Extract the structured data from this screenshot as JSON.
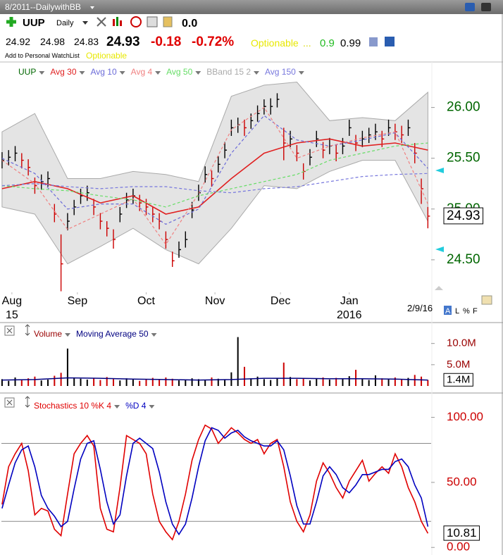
{
  "header": {
    "window_title": "8/2011--DailywithBB",
    "symbol": "UUP",
    "period": "Daily",
    "change_top": "0.0",
    "open": "24.92",
    "high": "24.98",
    "low": "24.83",
    "last": "24.93",
    "change": "-0.18",
    "change_pct": "-0.72%",
    "optionable": "Optionable",
    "dots": "...",
    "value1": "0.9",
    "value2": "0.99",
    "watchlist": "Add to Personal WatchList",
    "optionable2": "Optionable",
    "view_options": [
      "A",
      "L",
      "%",
      "F"
    ]
  },
  "chart_data": [
    {
      "type": "ohlc",
      "name": "UUP",
      "color": "#000000",
      "down_color": "#cc0000",
      "x": [
        0,
        2,
        4,
        6,
        8,
        10,
        12,
        14,
        16,
        18,
        20,
        22,
        24,
        26,
        28,
        30,
        32,
        34,
        36,
        38,
        40,
        42,
        44,
        46,
        48,
        50,
        52,
        54,
        56,
        58,
        60,
        62,
        64,
        66,
        68,
        70,
        72,
        74,
        76,
        78,
        80,
        82,
        84,
        86,
        88,
        90,
        92,
        94,
        96,
        98,
        100,
        102,
        104,
        106,
        108,
        110,
        112,
        114,
        116,
        118,
        120,
        122,
        124,
        126,
        128,
        130
      ],
      "high": [
        25.56,
        25.58,
        25.62,
        25.55,
        25.49,
        25.31,
        25.34,
        25.37,
        25.05,
        24.75,
        24.96,
        25.09,
        25.2,
        25.23,
        25.1,
        24.96,
        24.88,
        24.8,
        25.02,
        25.16,
        25.2,
        25.14,
        25.1,
        25.02,
        24.96,
        24.78,
        24.58,
        24.68,
        24.78,
        25.07,
        25.24,
        25.42,
        25.38,
        25.52,
        25.66,
        25.88,
        25.9,
        25.88,
        25.94,
        26.02,
        26.08,
        26.09,
        26.14,
        25.8,
        25.77,
        25.63,
        25.45,
        25.59,
        25.77,
        25.66,
        25.7,
        25.63,
        25.7,
        25.88,
        25.73,
        25.77,
        25.8,
        25.84,
        25.77,
        25.88,
        25.84,
        25.82,
        25.88,
        25.65,
        25.3,
        25.02
      ],
      "low": [
        25.4,
        25.43,
        25.47,
        25.4,
        25.33,
        25.15,
        25.19,
        25.22,
        24.87,
        24.19,
        24.79,
        24.94,
        25.05,
        25.08,
        24.94,
        24.8,
        24.73,
        24.61,
        24.87,
        25.01,
        25.05,
        24.98,
        24.94,
        24.87,
        24.8,
        24.61,
        24.43,
        24.52,
        24.62,
        24.91,
        25.08,
        25.26,
        25.22,
        25.36,
        25.5,
        25.72,
        25.75,
        25.72,
        25.79,
        25.86,
        25.93,
        25.93,
        26.0,
        25.48,
        25.61,
        25.47,
        25.29,
        25.43,
        25.61,
        25.5,
        25.54,
        25.47,
        25.54,
        25.72,
        25.57,
        25.61,
        25.65,
        25.68,
        25.61,
        25.72,
        25.68,
        25.65,
        25.72,
        25.45,
        25.05,
        24.81
      ],
      "close": [
        25.48,
        25.51,
        25.55,
        25.48,
        25.41,
        25.23,
        25.27,
        25.3,
        24.95,
        24.46,
        24.88,
        25.02,
        25.13,
        25.16,
        25.02,
        24.88,
        24.81,
        24.7,
        24.95,
        25.09,
        25.13,
        25.06,
        25.02,
        24.95,
        24.88,
        24.7,
        24.49,
        24.6,
        24.7,
        24.99,
        25.16,
        25.34,
        25.3,
        25.44,
        25.58,
        25.8,
        25.83,
        25.8,
        25.87,
        25.94,
        26.01,
        26.01,
        26.08,
        25.65,
        25.69,
        25.55,
        25.37,
        25.51,
        25.69,
        25.58,
        25.62,
        25.55,
        25.62,
        25.8,
        25.65,
        25.69,
        25.73,
        25.76,
        25.69,
        25.8,
        25.76,
        25.73,
        25.8,
        25.55,
        25.2,
        24.93
      ],
      "overlay_x": [
        0,
        10,
        20,
        30,
        40,
        50,
        60,
        70,
        80,
        90,
        100,
        110,
        120,
        130
      ],
      "overlays": [
        {
          "name": "Avg 30",
          "color": "#e02020",
          "dashed": false,
          "values": [
            25.2,
            25.27,
            25.2,
            25.06,
            25.13,
            24.95,
            25.02,
            25.3,
            25.55,
            25.65,
            25.69,
            25.62,
            25.65,
            25.58
          ]
        },
        {
          "name": "Avg 10",
          "color": "#6a6ad8",
          "dashed": true,
          "values": [
            25.5,
            25.35,
            25.0,
            25.05,
            25.05,
            24.85,
            25.0,
            25.55,
            25.92,
            25.68,
            25.62,
            25.68,
            25.75,
            25.4
          ]
        },
        {
          "name": "Avg 4",
          "color": "#f08080",
          "dashed": true,
          "values": [
            25.48,
            25.25,
            24.8,
            24.95,
            25.1,
            24.65,
            25.15,
            25.78,
            26.0,
            25.5,
            25.62,
            25.7,
            25.76,
            25.05
          ]
        },
        {
          "name": "Avg 50",
          "color": "#66dd66",
          "dashed": true,
          "values": [
            25.23,
            25.2,
            25.18,
            25.13,
            25.09,
            25.02,
            25.13,
            25.2,
            25.27,
            25.34,
            25.48,
            25.55,
            25.62,
            25.65
          ]
        },
        {
          "name": "BBand 15 2",
          "color": "#aaaaaa",
          "upper": [
            25.76,
            25.94,
            25.3,
            25.3,
            25.37,
            25.34,
            25.27,
            26.11,
            26.22,
            26.25,
            25.87,
            25.9,
            25.87,
            26.15
          ],
          "lower": [
            25.02,
            24.95,
            24.46,
            24.63,
            24.81,
            24.6,
            24.46,
            24.81,
            25.23,
            25.2,
            25.37,
            25.48,
            25.48,
            24.88
          ]
        },
        {
          "name": "Avg 150",
          "color": "#7777dd",
          "dashed": true,
          "values": [
            25.23,
            25.25,
            25.22,
            25.2,
            25.22,
            25.22,
            25.18,
            25.16,
            25.2,
            25.22,
            25.27,
            25.32,
            25.34,
            25.35
          ]
        }
      ],
      "xlim": [
        -0.2,
        131
      ],
      "ylim": [
        24.18,
        26.33
      ],
      "yticks": [
        {
          "value": 24.5,
          "label": "24.50"
        },
        {
          "value": 25,
          "label": "25.00"
        },
        {
          "value": 25.5,
          "label": "25.50"
        },
        {
          "value": 26,
          "label": "26.00"
        }
      ],
      "xticks": [
        {
          "value": 3,
          "label": "Aug"
        },
        {
          "value": 23,
          "label": "Sep"
        },
        {
          "value": 44,
          "label": "Oct"
        },
        {
          "value": 65,
          "label": "Nov"
        },
        {
          "value": 85,
          "label": "Dec"
        },
        {
          "value": 106,
          "label": "Jan"
        }
      ],
      "year_labels": [
        {
          "value": 3,
          "label": "15"
        },
        {
          "value": 106,
          "label": "2016"
        }
      ],
      "date_label": "2/9/16"
    },
    {
      "type": "bar",
      "x": [
        0,
        2,
        4,
        6,
        8,
        10,
        12,
        14,
        16,
        18,
        20,
        22,
        24,
        26,
        28,
        30,
        32,
        34,
        36,
        38,
        40,
        42,
        44,
        46,
        48,
        50,
        52,
        54,
        56,
        58,
        60,
        62,
        64,
        66,
        68,
        70,
        72,
        74,
        76,
        78,
        80,
        82,
        84,
        86,
        88,
        90,
        92,
        94,
        96,
        98,
        100,
        102,
        104,
        106,
        108,
        110,
        112,
        114,
        116,
        118,
        120,
        122,
        124,
        126,
        128,
        130
      ],
      "series": [
        {
          "name": "Volume",
          "color": "#cc0000",
          "up_color": "#000000",
          "values": [
            1.6,
            1.2,
            2.0,
            1.4,
            1.8,
            2.2,
            1.3,
            1.5,
            2.4,
            3.1,
            8.8,
            2.0,
            1.7,
            1.5,
            1.9,
            1.4,
            2.1,
            1.6,
            1.3,
            1.8,
            1.5,
            1.2,
            1.6,
            1.9,
            1.4,
            2.0,
            1.7,
            1.3,
            1.5,
            1.8,
            1.6,
            1.4,
            2.0,
            1.7,
            1.5,
            3.2,
            11.5,
            4.5,
            1.8,
            2.2,
            1.6,
            1.4,
            1.9,
            5.5,
            2.1,
            1.6,
            1.8,
            1.3,
            1.7,
            2.0,
            1.5,
            1.9,
            1.6,
            2.3,
            3.8,
            1.7,
            1.4,
            2.5,
            1.8,
            1.6,
            2.0,
            1.5,
            1.9,
            2.6,
            2.2,
            1.4
          ]
        },
        {
          "name": "Moving Average 50",
          "color": "#000080",
          "x": [
            0,
            10,
            20,
            30,
            40,
            50,
            60,
            70,
            80,
            90,
            100,
            110,
            120,
            130
          ],
          "values": [
            1.4,
            1.5,
            1.9,
            1.8,
            1.6,
            1.5,
            1.4,
            1.5,
            1.8,
            1.8,
            1.7,
            1.7,
            1.6,
            1.4
          ],
          "value_labels": [
            null,
            null,
            null,
            null,
            null,
            null,
            null,
            null,
            null,
            null,
            null,
            null,
            null,
            "1.4M"
          ]
        }
      ],
      "xlim": [
        -0.2,
        131
      ],
      "ylim": [
        0,
        11.6
      ],
      "yticks": [
        {
          "value": 5,
          "label": "5.0M"
        },
        {
          "value": 10,
          "label": "10.0M"
        }
      ]
    },
    {
      "type": "line",
      "x": [
        0,
        2,
        4,
        6,
        8,
        10,
        12,
        14,
        16,
        18,
        20,
        22,
        24,
        26,
        28,
        30,
        32,
        34,
        36,
        38,
        40,
        42,
        44,
        46,
        48,
        50,
        52,
        54,
        56,
        58,
        60,
        62,
        64,
        66,
        68,
        70,
        72,
        74,
        76,
        78,
        80,
        82,
        84,
        86,
        88,
        90,
        92,
        94,
        96,
        98,
        100,
        102,
        104,
        106,
        108,
        110,
        112,
        114,
        116,
        118,
        120,
        122,
        124,
        126,
        128,
        130
      ],
      "series": [
        {
          "name": "Stochastics 10 %K 4",
          "color": "#e00000",
          "values": [
            33,
            62,
            72,
            80,
            59,
            25,
            30,
            28,
            14,
            9,
            41,
            72,
            80,
            86,
            78,
            30,
            14,
            12,
            46,
            86,
            83,
            80,
            72,
            41,
            20,
            12,
            6,
            20,
            41,
            67,
            83,
            94,
            91,
            80,
            86,
            92,
            88,
            83,
            80,
            83,
            72,
            80,
            83,
            62,
            35,
            20,
            12,
            25,
            51,
            65,
            57,
            46,
            38,
            51,
            59,
            67,
            51,
            57,
            62,
            57,
            72,
            62,
            46,
            35,
            20,
            10.81
          ]
        },
        {
          "name": "%D 4",
          "color": "#0000c0",
          "values": [
            30,
            48,
            65,
            75,
            78,
            62,
            40,
            30,
            24,
            16,
            20,
            45,
            68,
            80,
            82,
            60,
            35,
            18,
            25,
            55,
            80,
            84,
            80,
            76,
            58,
            35,
            18,
            10,
            18,
            38,
            62,
            82,
            92,
            90,
            84,
            88,
            90,
            85,
            82,
            80,
            78,
            78,
            82,
            75,
            55,
            32,
            18,
            18,
            35,
            55,
            62,
            56,
            46,
            42,
            48,
            56,
            56,
            58,
            60,
            60,
            66,
            68,
            62,
            48,
            38,
            16
          ]
        }
      ],
      "reference_lines": [
        20,
        80
      ],
      "xlim": [
        -0.2,
        131
      ],
      "ylim": [
        -4.2,
        106.8
      ],
      "yticks": [
        {
          "value": 0,
          "label": "0.00"
        },
        {
          "value": 50,
          "label": "50.00"
        },
        {
          "value": 100,
          "label": "100.00"
        }
      ]
    }
  ]
}
